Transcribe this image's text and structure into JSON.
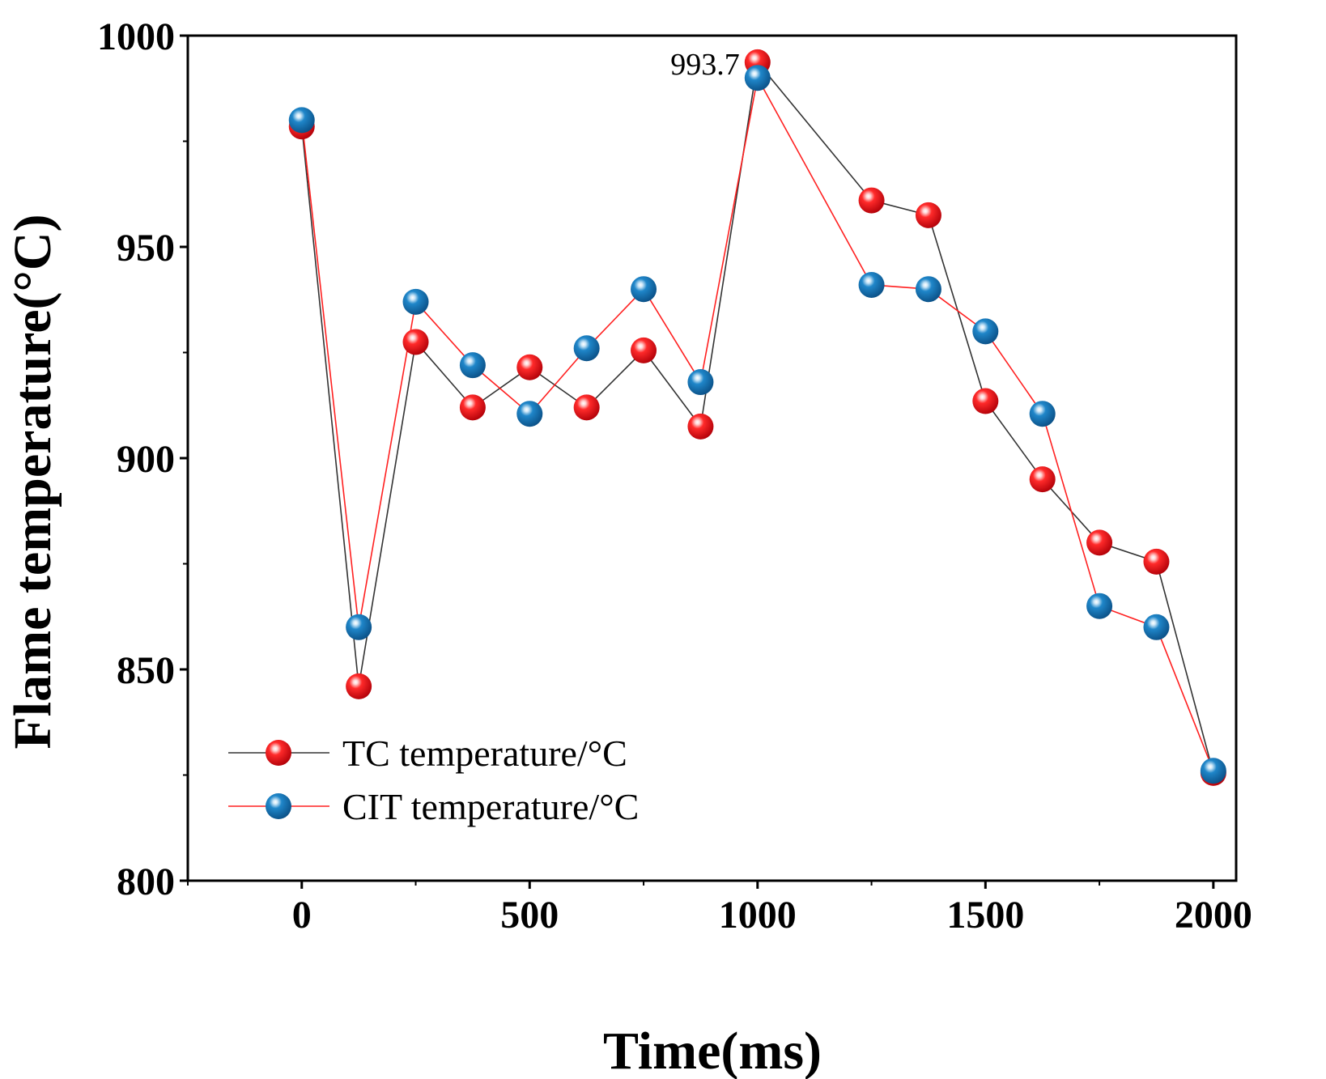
{
  "chart_data": {
    "type": "line",
    "title": "",
    "xlabel": "Time(ms)",
    "ylabel": "Flame temperature(°C)",
    "xlim": [
      -250,
      2050
    ],
    "ylim": [
      800,
      1000
    ],
    "xticks": [
      0,
      500,
      1000,
      1500,
      2000
    ],
    "yticks": [
      800,
      850,
      900,
      950,
      1000
    ],
    "grid": false,
    "legend_position": "bottom-left",
    "x": [
      0,
      125,
      250,
      375,
      500,
      625,
      750,
      875,
      1000,
      1250,
      1375,
      1500,
      1625,
      1750,
      1875,
      2000
    ],
    "series": [
      {
        "name": "TC  temperature/°C",
        "marker_color": "#e8141c",
        "line_color": "#333333",
        "values": [
          978.5,
          846,
          927.5,
          912,
          921.5,
          912,
          925.5,
          907.5,
          993.7,
          961,
          957.5,
          913.5,
          895,
          880,
          875.5,
          825.5
        ]
      },
      {
        "name": "CIT temperature/°C",
        "marker_color": "#1a7bbf",
        "line_color": "#ff2020",
        "values": [
          980,
          860,
          937,
          922,
          910.5,
          926,
          940,
          918,
          990,
          941,
          940,
          930,
          910.5,
          865,
          860,
          826
        ]
      }
    ],
    "annotations": [
      {
        "text": "993.7",
        "x": 1000,
        "y": 993.7
      }
    ]
  }
}
